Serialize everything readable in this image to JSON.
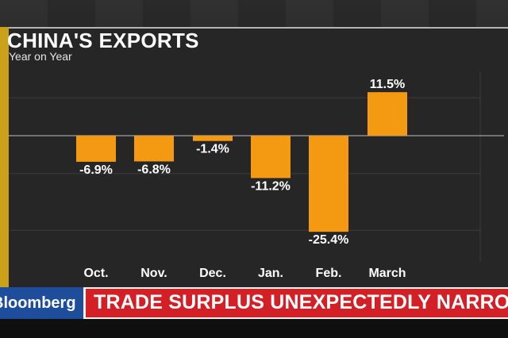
{
  "chart_data": {
    "type": "bar",
    "title": "CHINA'S EXPORTS",
    "subtitle": "Year on Year",
    "categories": [
      "Oct.",
      "Nov.",
      "Dec.",
      "Jan.",
      "Feb.",
      "March"
    ],
    "values": [
      -6.9,
      -6.8,
      -1.4,
      -11.2,
      -25.4,
      11.5
    ],
    "value_labels": [
      "-6.9%",
      "-6.8%",
      "-1.4%",
      "-11.2%",
      "-25.4%",
      "11.5%"
    ],
    "ylim": [
      -30,
      20
    ],
    "grid": true,
    "bar_color": "#f39a12"
  },
  "lower_third": {
    "brand": "Bloomberg",
    "headline": "TRADE SURPLUS UNEXPECTEDLY NARROWED"
  },
  "colors": {
    "brand_blue": "#1e4e9b",
    "headline_red": "#d31f26"
  }
}
